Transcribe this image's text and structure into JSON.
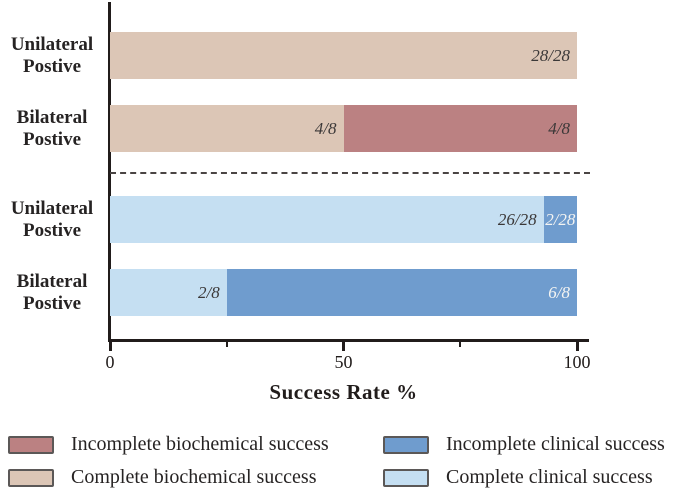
{
  "chart_data": {
    "type": "bar",
    "orientation": "horizontal",
    "stacked": true,
    "xlabel": "Success Rate %",
    "xlim": [
      0,
      100
    ],
    "grid": false,
    "x_ticks": [
      {
        "value": 0,
        "label": "0",
        "major": true
      },
      {
        "value": 25,
        "label": "",
        "major": false
      },
      {
        "value": 50,
        "label": "50",
        "major": true
      },
      {
        "value": 75,
        "label": "",
        "major": false
      },
      {
        "value": 100,
        "label": "100",
        "major": true
      }
    ],
    "group_separator": "dashed line between biochemical group and clinical group",
    "rows": [
      {
        "category": "Unilateral\nPostive",
        "group": "biochemical",
        "segments": [
          {
            "series": "Complete biochemical success",
            "fraction": "28/28",
            "pct": 100,
            "color": "#dcc6b6",
            "label_color": "#3b3838"
          }
        ]
      },
      {
        "category": "Bilateral\nPostive",
        "group": "biochemical",
        "segments": [
          {
            "series": "Complete biochemical success",
            "fraction": "4/8",
            "pct": 50,
            "color": "#dcc6b6",
            "label_color": "#3b3838"
          },
          {
            "series": "Incomplete biochemical success",
            "fraction": "4/8",
            "pct": 50,
            "color": "#bb8182",
            "label_color": "#3b3838"
          }
        ]
      },
      {
        "category": "Unilateral\nPostive",
        "group": "clinical",
        "segments": [
          {
            "series": "Complete clinical success",
            "fraction": "26/28",
            "pct": 92.86,
            "color": "#c5dff2",
            "label_color": "#3b3838"
          },
          {
            "series": "Incomplete clinical success",
            "fraction": "2/28",
            "pct": 7.14,
            "color": "#6f9cce",
            "label_color": "#f4f4f2"
          }
        ]
      },
      {
        "category": "Bilateral\nPostive",
        "group": "clinical",
        "segments": [
          {
            "series": "Complete clinical success",
            "fraction": "2/8",
            "pct": 25,
            "color": "#c5dff2",
            "label_color": "#3b3838"
          },
          {
            "series": "Incomplete clinical success",
            "fraction": "6/8",
            "pct": 75,
            "color": "#6f9cce",
            "label_color": "#f4f4f2"
          }
        ]
      }
    ],
    "legend": {
      "position": "bottom",
      "columns": 2,
      "items": [
        {
          "label": "Incomplete biochemical success",
          "color": "#bb8182"
        },
        {
          "label": "Complete biochemical success",
          "color": "#dcc6b6"
        },
        {
          "label": "Incomplete clinical success",
          "color": "#6f9cce"
        },
        {
          "label": "Complete clinical success",
          "color": "#c5dff2"
        }
      ]
    },
    "colors": {
      "incomplete_biochemical": "#bb8182",
      "complete_biochemical": "#dcc6b6",
      "incomplete_clinical": "#6f9cce",
      "complete_clinical": "#c5dff2",
      "axis": "#211c1b",
      "text": "#262323"
    }
  }
}
